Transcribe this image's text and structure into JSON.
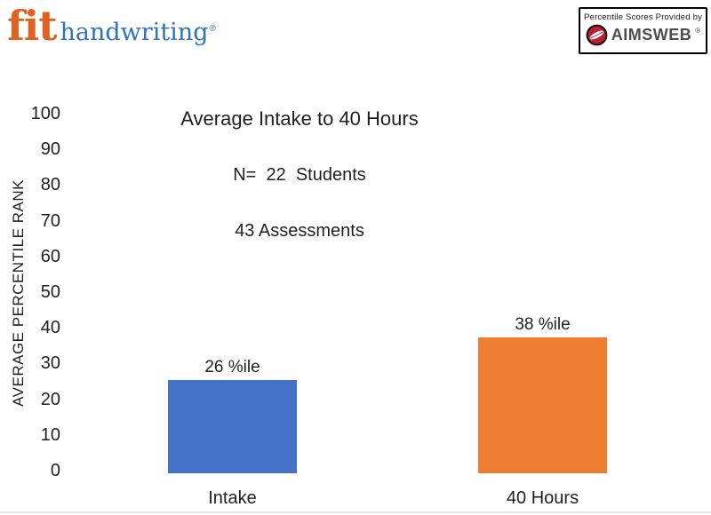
{
  "header": {
    "logo": {
      "fit": "fit",
      "handwriting": "handwriting",
      "registered": "®"
    },
    "provider": {
      "caption": "Percentile Scores Provided by",
      "brand": "AIMSWEB",
      "trademark": "®"
    },
    "brand_colors": {
      "fit_orange": "#E2611F",
      "handwriting_blue": "#2F74B8",
      "aimsweb_red": "#BE1E2D",
      "aimsweb_gray": "#4D4D4F"
    }
  },
  "chart_data": {
    "type": "bar",
    "title": "Average Intake to 40 Hours",
    "subtitle_lines": [
      "N=  22  Students",
      "43 Assessments"
    ],
    "ylabel": "AVERAGE PERCENTILE RANK",
    "xlabel": "",
    "categories": [
      "Intake",
      "40 Hours"
    ],
    "values": [
      26,
      38
    ],
    "value_labels": [
      "26 %ile",
      "38 %ile"
    ],
    "bar_colors": [
      "#4472C4",
      "#ED7D31"
    ],
    "ylim": [
      0,
      100
    ],
    "yticks": [
      100,
      90,
      80,
      70,
      60,
      50,
      40,
      30,
      20,
      10,
      0
    ],
    "grid": false,
    "legend": "none"
  }
}
